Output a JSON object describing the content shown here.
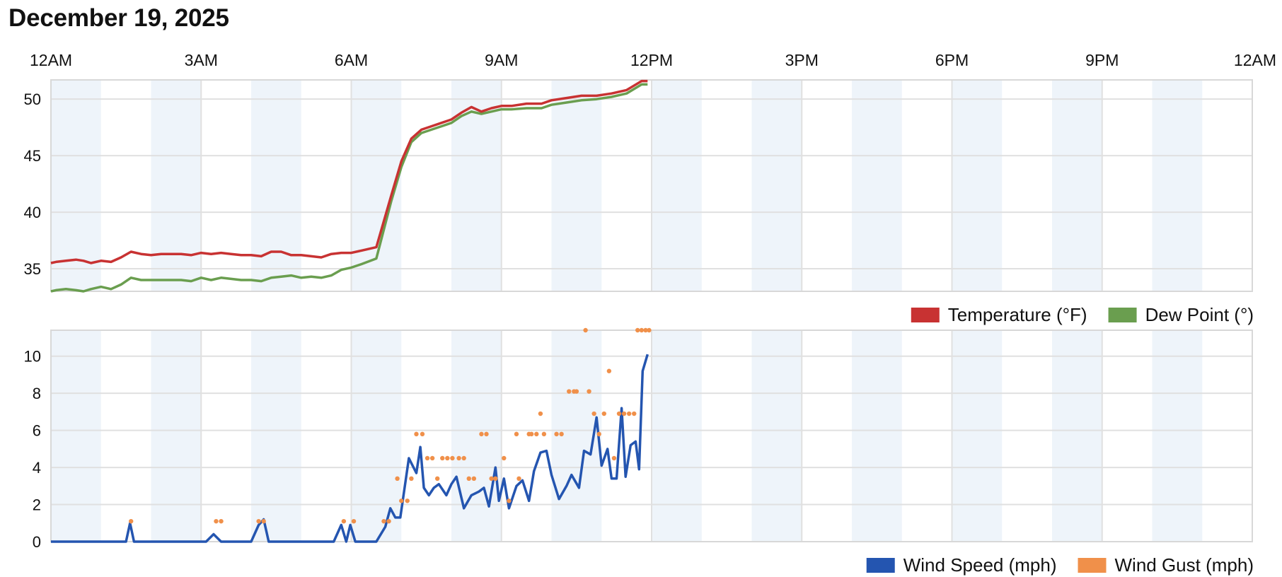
{
  "page_title": "December 19, 2025",
  "colors": {
    "temperature": "#c83232",
    "dew_point": "#6a9e4f",
    "wind_speed": "#2455b0",
    "wind_gust": "#f0904a",
    "band": "#eef4fa",
    "grid": "#e0e0e0"
  },
  "chart_data": [
    {
      "type": "line",
      "x_unit": "hours since 12AM",
      "x_ticks": [
        {
          "x": 0,
          "label": "12AM"
        },
        {
          "x": 3,
          "label": "3AM"
        },
        {
          "x": 6,
          "label": "6AM"
        },
        {
          "x": 9,
          "label": "9AM"
        },
        {
          "x": 12,
          "label": "12PM"
        },
        {
          "x": 15,
          "label": "3PM"
        },
        {
          "x": 18,
          "label": "6PM"
        },
        {
          "x": 21,
          "label": "9PM"
        },
        {
          "x": 24,
          "label": "12AM"
        }
      ],
      "y_ticks": [
        35,
        40,
        45,
        50
      ],
      "ylim": [
        33,
        51.7
      ],
      "legend_position": "bottom-right",
      "series": [
        {
          "name": "Temperature (°F)",
          "x": [
            0,
            0.1,
            0.3,
            0.5,
            0.65,
            0.8,
            1,
            1.2,
            1.4,
            1.6,
            1.8,
            2,
            2.2,
            2.4,
            2.6,
            2.8,
            3,
            3.2,
            3.4,
            3.6,
            3.8,
            4,
            4.2,
            4.4,
            4.6,
            4.8,
            5,
            5.2,
            5.4,
            5.6,
            5.8,
            6,
            6.2,
            6.5,
            6.8,
            7,
            7.2,
            7.4,
            7.6,
            7.8,
            8,
            8.2,
            8.4,
            8.6,
            8.8,
            9,
            9.2,
            9.5,
            9.8,
            10,
            10.3,
            10.6,
            10.9,
            11.2,
            11.5,
            11.8,
            11.92
          ],
          "values": [
            35.5,
            35.6,
            35.7,
            35.8,
            35.7,
            35.5,
            35.7,
            35.6,
            36.0,
            36.5,
            36.3,
            36.2,
            36.3,
            36.3,
            36.3,
            36.2,
            36.4,
            36.3,
            36.4,
            36.3,
            36.2,
            36.2,
            36.1,
            36.5,
            36.5,
            36.2,
            36.2,
            36.1,
            36.0,
            36.3,
            36.4,
            36.4,
            36.6,
            36.9,
            41.5,
            44.5,
            46.5,
            47.3,
            47.6,
            47.9,
            48.2,
            48.8,
            49.3,
            48.9,
            49.2,
            49.4,
            49.4,
            49.6,
            49.6,
            49.9,
            50.1,
            50.3,
            50.3,
            50.5,
            50.8,
            51.6,
            51.6
          ]
        },
        {
          "name": "Dew Point (°)",
          "x": [
            0,
            0.1,
            0.3,
            0.5,
            0.65,
            0.8,
            1,
            1.2,
            1.4,
            1.6,
            1.8,
            2,
            2.2,
            2.4,
            2.6,
            2.8,
            3,
            3.2,
            3.4,
            3.6,
            3.8,
            4,
            4.2,
            4.4,
            4.6,
            4.8,
            5,
            5.2,
            5.4,
            5.6,
            5.8,
            6,
            6.2,
            6.5,
            6.8,
            7,
            7.2,
            7.4,
            7.6,
            7.8,
            8,
            8.2,
            8.4,
            8.6,
            8.8,
            9,
            9.2,
            9.5,
            9.8,
            10,
            10.3,
            10.6,
            10.9,
            11.2,
            11.5,
            11.8,
            11.92
          ],
          "values": [
            33.0,
            33.1,
            33.2,
            33.1,
            33.0,
            33.2,
            33.4,
            33.2,
            33.6,
            34.2,
            34.0,
            34.0,
            34.0,
            34.0,
            34.0,
            33.9,
            34.2,
            34.0,
            34.2,
            34.1,
            34.0,
            34.0,
            33.9,
            34.2,
            34.3,
            34.4,
            34.2,
            34.3,
            34.2,
            34.4,
            34.9,
            35.1,
            35.4,
            35.9,
            41.0,
            44.0,
            46.2,
            47.0,
            47.3,
            47.6,
            47.9,
            48.5,
            48.9,
            48.7,
            48.9,
            49.1,
            49.1,
            49.2,
            49.2,
            49.5,
            49.7,
            49.9,
            50.0,
            50.2,
            50.5,
            51.3,
            51.3
          ]
        }
      ]
    },
    {
      "type": "line",
      "x_unit": "hours since 12AM",
      "y_ticks": [
        0,
        2,
        4,
        6,
        8,
        10
      ],
      "ylim": [
        0,
        11.4
      ],
      "legend_position": "bottom-right",
      "series": [
        {
          "name": "Wind Speed (mph)",
          "x": [
            0,
            1.5,
            1.58,
            1.66,
            3.1,
            3.25,
            3.4,
            4.0,
            4.15,
            4.25,
            4.35,
            5.65,
            5.8,
            5.9,
            5.98,
            6.08,
            6.5,
            6.68,
            6.78,
            6.88,
            6.98,
            7.15,
            7.3,
            7.38,
            7.45,
            7.55,
            7.65,
            7.75,
            7.9,
            8.0,
            8.1,
            8.25,
            8.4,
            8.55,
            8.65,
            8.75,
            8.88,
            8.95,
            9.05,
            9.15,
            9.3,
            9.42,
            9.55,
            9.65,
            9.78,
            9.9,
            10.0,
            10.15,
            10.3,
            10.4,
            10.55,
            10.65,
            10.78,
            10.9,
            11.0,
            11.12,
            11.2,
            11.3,
            11.4,
            11.48,
            11.58,
            11.68,
            11.75,
            11.82,
            11.92
          ],
          "values": [
            0,
            0,
            1.0,
            0,
            0,
            0.4,
            0,
            0,
            0.9,
            1.2,
            0,
            0,
            0.9,
            0,
            0.9,
            0,
            0,
            0.8,
            1.8,
            1.3,
            1.3,
            4.5,
            3.7,
            5.1,
            2.9,
            2.5,
            2.9,
            3.1,
            2.5,
            3.1,
            3.5,
            1.8,
            2.5,
            2.7,
            2.9,
            1.9,
            4.0,
            2.2,
            3.4,
            1.8,
            3.0,
            3.3,
            2.2,
            3.8,
            4.8,
            4.9,
            3.6,
            2.3,
            3.0,
            3.6,
            2.9,
            4.9,
            4.7,
            6.7,
            4.1,
            5.0,
            3.4,
            3.4,
            7.2,
            3.5,
            5.2,
            5.4,
            3.9,
            9.2,
            10.1
          ]
        },
        {
          "name": "Wind Gust (mph)",
          "x": [
            1.6,
            3.3,
            3.4,
            4.15,
            4.25,
            5.85,
            6.05,
            6.65,
            6.75,
            6.92,
            7.0,
            7.12,
            7.2,
            7.3,
            7.42,
            7.52,
            7.62,
            7.72,
            7.82,
            7.92,
            8.02,
            8.15,
            8.25,
            8.35,
            8.45,
            8.6,
            8.7,
            8.8,
            8.88,
            9.05,
            9.15,
            9.3,
            9.35,
            9.55,
            9.6,
            9.7,
            9.78,
            9.85,
            10.1,
            10.2,
            10.35,
            10.45,
            10.5,
            10.68,
            10.75,
            10.85,
            10.95,
            11.05,
            11.15,
            11.25,
            11.35,
            11.45,
            11.55,
            11.65,
            11.72,
            11.8,
            11.88,
            11.95
          ],
          "values": [
            1.1,
            1.1,
            1.1,
            1.1,
            1.1,
            1.1,
            1.1,
            1.1,
            1.1,
            3.4,
            2.2,
            2.2,
            3.4,
            5.8,
            5.8,
            4.5,
            4.5,
            3.4,
            4.5,
            4.5,
            4.5,
            4.5,
            4.5,
            3.4,
            3.4,
            5.8,
            5.8,
            3.4,
            3.4,
            4.5,
            2.2,
            5.8,
            3.4,
            5.8,
            5.8,
            5.8,
            6.9,
            5.8,
            5.8,
            5.8,
            8.1,
            8.1,
            8.1,
            11.4,
            8.1,
            6.9,
            5.8,
            6.9,
            9.2,
            4.5,
            6.9,
            6.9,
            6.9,
            6.9,
            11.4,
            11.4,
            11.4,
            11.4
          ]
        }
      ]
    }
  ]
}
